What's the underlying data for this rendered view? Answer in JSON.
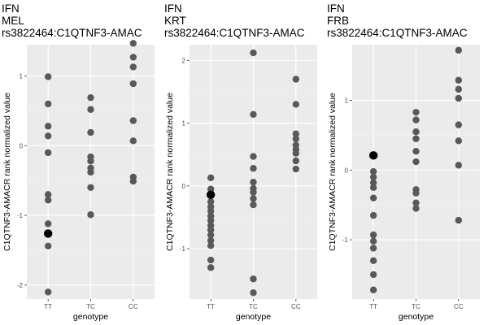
{
  "chart_data": [
    {
      "type": "scatter",
      "title_lines": [
        "IFN",
        "MEL",
        "rs3822464:C1QTNF3-AMAC"
      ],
      "xlabel": "genotype",
      "ylabel": "C1QTNF3-AMACR rank normalized value",
      "categories": [
        "TT",
        "TC",
        "CC"
      ],
      "ylim": [
        -2.2,
        1.45
      ],
      "yticks": [
        -2,
        -1,
        0,
        1
      ],
      "grid": true,
      "series": [
        {
          "category": "TT",
          "values": [
            0.99,
            0.6,
            0.28,
            0.14,
            -0.1,
            -0.7,
            -0.78,
            -1.12,
            -1.44,
            -2.1
          ]
        },
        {
          "category": "TC",
          "values": [
            0.69,
            0.52,
            0.19,
            -0.16,
            -0.22,
            -0.32,
            -0.38,
            -0.6,
            -0.99
          ]
        },
        {
          "category": "CC",
          "values": [
            1.47,
            1.27,
            1.13,
            0.89,
            0.36,
            0.07,
            -0.45,
            -0.51
          ]
        }
      ],
      "highlight": {
        "category": "TT",
        "value": -1.26
      }
    },
    {
      "type": "scatter",
      "title_lines": [
        "IFN",
        "KRT",
        "rs3822464:C1QTNF3-AMAC"
      ],
      "xlabel": "genotype",
      "ylabel": "C1QTNF3-AMACR rank normalized value",
      "categories": [
        "TT",
        "TC",
        "CC"
      ],
      "ylim": [
        -1.8,
        2.25
      ],
      "yticks": [
        -1,
        0,
        1,
        2
      ],
      "grid": true,
      "series": [
        {
          "category": "TT",
          "values": [
            0.13,
            -0.05,
            -0.25,
            -0.33,
            -0.4,
            -0.48,
            -0.55,
            -0.63,
            -0.7,
            -0.78,
            -0.87,
            -0.95,
            -1.18,
            -1.3
          ]
        },
        {
          "category": "TC",
          "values": [
            2.12,
            1.14,
            0.47,
            0.28,
            0.06,
            -0.04,
            -0.1,
            -0.2,
            -0.3,
            -1.48,
            -1.7
          ]
        },
        {
          "category": "CC",
          "values": [
            1.7,
            1.3,
            0.83,
            0.75,
            0.65,
            0.58,
            0.52,
            0.4,
            0.27
          ]
        }
      ],
      "highlight": {
        "category": "TT",
        "value": -0.14
      }
    },
    {
      "type": "scatter",
      "title_lines": [
        "IFN",
        "FRB",
        "rs3822464:C1QTNF3-AMAC"
      ],
      "xlabel": "genotype",
      "ylabel": "C1QTNF3-AMACR rank normalized value",
      "categories": [
        "TT",
        "TC",
        "CC"
      ],
      "ylim": [
        -1.85,
        1.8
      ],
      "yticks": [
        -1,
        0,
        1
      ],
      "grid": true,
      "series": [
        {
          "category": "TT",
          "values": [
            -0.02,
            -0.1,
            -0.18,
            -0.25,
            -0.4,
            -0.65,
            -0.93,
            -1.02,
            -1.12,
            -1.3,
            -1.5,
            -1.72
          ]
        },
        {
          "category": "TC",
          "values": [
            0.83,
            0.72,
            0.55,
            0.45,
            0.27,
            0.12,
            -0.28,
            -0.33,
            -0.47,
            -0.55
          ]
        },
        {
          "category": "CC",
          "values": [
            1.72,
            1.29,
            1.16,
            1.03,
            0.65,
            0.42,
            0.07,
            -0.72
          ]
        }
      ],
      "highlight": {
        "category": "TT",
        "value": 0.21
      }
    }
  ]
}
